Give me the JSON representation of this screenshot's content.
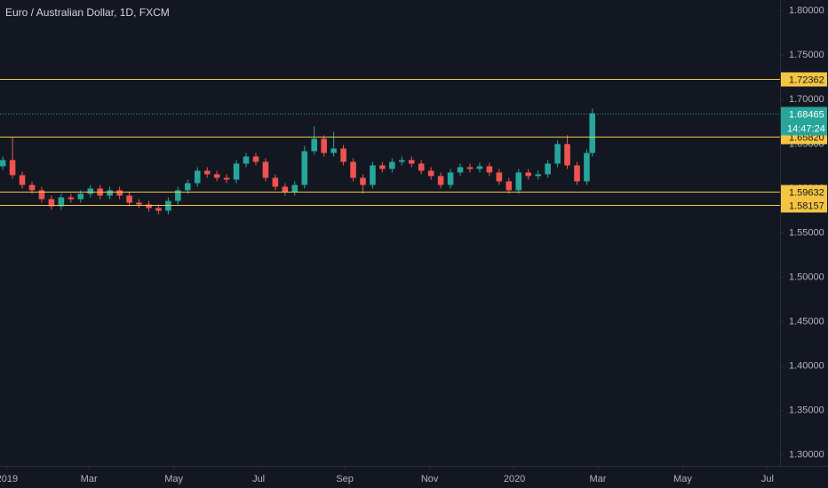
{
  "chart_data": {
    "type": "candlestick",
    "title": "Euro / Australian Dollar, 1D, FXCM",
    "x": [
      -3,
      4,
      11,
      18,
      25,
      32,
      39,
      46,
      53,
      60,
      67,
      74,
      81,
      88,
      95,
      102,
      109,
      116,
      123,
      130,
      137,
      144,
      151,
      158,
      165,
      172,
      179,
      186,
      193,
      200,
      207,
      214,
      221,
      228,
      235,
      242,
      249,
      256,
      263,
      270,
      277,
      284,
      291,
      298,
      305,
      312,
      319,
      326,
      333,
      340,
      347,
      354,
      361,
      368,
      375,
      382,
      389,
      396,
      403,
      410,
      417,
      421
    ],
    "open": [
      1.625,
      1.632,
      1.615,
      1.604,
      1.598,
      1.588,
      1.58,
      1.59,
      1.588,
      1.594,
      1.6,
      1.592,
      1.598,
      1.592,
      1.584,
      1.582,
      1.578,
      1.575,
      1.586,
      1.598,
      1.606,
      1.62,
      1.616,
      1.612,
      1.61,
      1.628,
      1.636,
      1.63,
      1.612,
      1.602,
      1.596,
      1.604,
      1.642,
      1.656,
      1.64,
      1.645,
      1.63,
      1.612,
      1.604,
      1.626,
      1.622,
      1.63,
      1.632,
      1.628,
      1.62,
      1.614,
      1.604,
      1.618,
      1.624,
      1.622,
      1.625,
      1.618,
      1.608,
      1.598,
      1.618,
      1.614,
      1.616,
      1.628,
      1.65,
      1.626,
      1.608,
      1.64
    ],
    "high": [
      1.636,
      1.658,
      1.619,
      1.608,
      1.602,
      1.592,
      1.594,
      1.594,
      1.598,
      1.604,
      1.604,
      1.602,
      1.602,
      1.596,
      1.588,
      1.586,
      1.582,
      1.59,
      1.602,
      1.61,
      1.624,
      1.624,
      1.62,
      1.616,
      1.632,
      1.64,
      1.64,
      1.634,
      1.616,
      1.606,
      1.608,
      1.648,
      1.67,
      1.66,
      1.664,
      1.649,
      1.634,
      1.616,
      1.63,
      1.63,
      1.634,
      1.636,
      1.636,
      1.632,
      1.624,
      1.618,
      1.622,
      1.628,
      1.628,
      1.629,
      1.629,
      1.622,
      1.612,
      1.622,
      1.622,
      1.62,
      1.632,
      1.654,
      1.66,
      1.63,
      1.644,
      1.69
    ],
    "low": [
      1.621,
      1.611,
      1.6,
      1.594,
      1.584,
      1.576,
      1.576,
      1.584,
      1.584,
      1.59,
      1.588,
      1.588,
      1.588,
      1.58,
      1.578,
      1.574,
      1.571,
      1.571,
      1.582,
      1.594,
      1.602,
      1.612,
      1.608,
      1.606,
      1.606,
      1.624,
      1.626,
      1.608,
      1.598,
      1.592,
      1.592,
      1.6,
      1.638,
      1.636,
      1.636,
      1.626,
      1.608,
      1.594,
      1.6,
      1.618,
      1.618,
      1.626,
      1.624,
      1.616,
      1.61,
      1.6,
      1.6,
      1.614,
      1.618,
      1.618,
      1.614,
      1.604,
      1.594,
      1.594,
      1.61,
      1.61,
      1.612,
      1.624,
      1.622,
      1.604,
      1.604,
      1.636
    ],
    "close": [
      1.632,
      1.615,
      1.604,
      1.598,
      1.588,
      1.58,
      1.59,
      1.588,
      1.594,
      1.6,
      1.592,
      1.598,
      1.592,
      1.584,
      1.582,
      1.578,
      1.575,
      1.586,
      1.598,
      1.606,
      1.62,
      1.616,
      1.612,
      1.61,
      1.628,
      1.636,
      1.63,
      1.612,
      1.602,
      1.596,
      1.604,
      1.642,
      1.656,
      1.64,
      1.645,
      1.63,
      1.612,
      1.604,
      1.626,
      1.622,
      1.63,
      1.632,
      1.628,
      1.62,
      1.614,
      1.604,
      1.618,
      1.624,
      1.622,
      1.625,
      1.618,
      1.608,
      1.598,
      1.618,
      1.614,
      1.616,
      1.628,
      1.65,
      1.626,
      1.608,
      1.64,
      1.68465
    ],
    "up_color": "#26a69a",
    "down_color": "#ef5350",
    "xlim": [
      -5,
      556
    ],
    "xticks": [
      {
        "value": 0,
        "label": "2019"
      },
      {
        "value": 59,
        "label": "Mar"
      },
      {
        "value": 120,
        "label": "May"
      },
      {
        "value": 181,
        "label": "Jul"
      },
      {
        "value": 243,
        "label": "Sep"
      },
      {
        "value": 304,
        "label": "Nov"
      },
      {
        "value": 365,
        "label": "2020"
      },
      {
        "value": 425,
        "label": "Mar"
      },
      {
        "value": 486,
        "label": "May"
      },
      {
        "value": 547,
        "label": "Jul"
      }
    ],
    "ylim": [
      1.2878,
      1.8122
    ],
    "yticks": [
      {
        "value": 1.3,
        "label": "1.30000"
      },
      {
        "value": 1.35,
        "label": "1.35000"
      },
      {
        "value": 1.4,
        "label": "1.40000"
      },
      {
        "value": 1.45,
        "label": "1.45000"
      },
      {
        "value": 1.5,
        "label": "1.50000"
      },
      {
        "value": 1.55,
        "label": "1.55000"
      },
      {
        "value": 1.6,
        "label": "1.60000"
      },
      {
        "value": 1.65,
        "label": "1.65000"
      },
      {
        "value": 1.7,
        "label": "1.70000"
      },
      {
        "value": 1.75,
        "label": "1.75000"
      },
      {
        "value": 1.8,
        "label": "1.80000"
      }
    ],
    "levels": [
      1.72362,
      1.6582,
      1.59632,
      1.58157
    ],
    "level_labels": [
      "1.72362",
      "1.65820",
      "1.59632",
      "1.58157"
    ],
    "level_color": "#f5c542",
    "last": {
      "value": 1.68465,
      "countdown": "14:47:24",
      "color": "#26a69a"
    }
  }
}
